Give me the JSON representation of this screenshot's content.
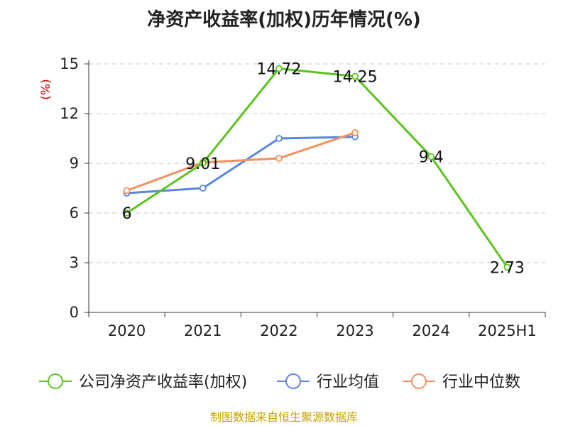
{
  "chart_data": {
    "type": "line",
    "title": "净资产收益率(加权)历年情况(%)",
    "ylabel": "(%)",
    "categories": [
      "2020",
      "2021",
      "2022",
      "2023",
      "2024",
      "2025H1"
    ],
    "ylim": [
      0,
      15
    ],
    "yticks": [
      "0",
      "3",
      "6",
      "9",
      "12",
      "15"
    ],
    "grid": true,
    "legend_position": "bottom",
    "series": [
      {
        "name": "公司净资产收益率(加权)",
        "color": "#5cc31f",
        "values": [
          6,
          9.01,
          14.72,
          14.25,
          9.4,
          2.73
        ],
        "labels": [
          "6",
          "9.01",
          "14.72",
          "14.25",
          "9.4",
          "2.73"
        ]
      },
      {
        "name": "行业均值",
        "color": "#5b86e0",
        "values": [
          7.2,
          7.5,
          10.5,
          10.6,
          null,
          null
        ]
      },
      {
        "name": "行业中位数",
        "color": "#f4905e",
        "values": [
          7.35,
          9.05,
          9.3,
          10.85,
          null,
          null
        ]
      }
    ]
  },
  "source": "制图数据来自恒生聚源数据库"
}
